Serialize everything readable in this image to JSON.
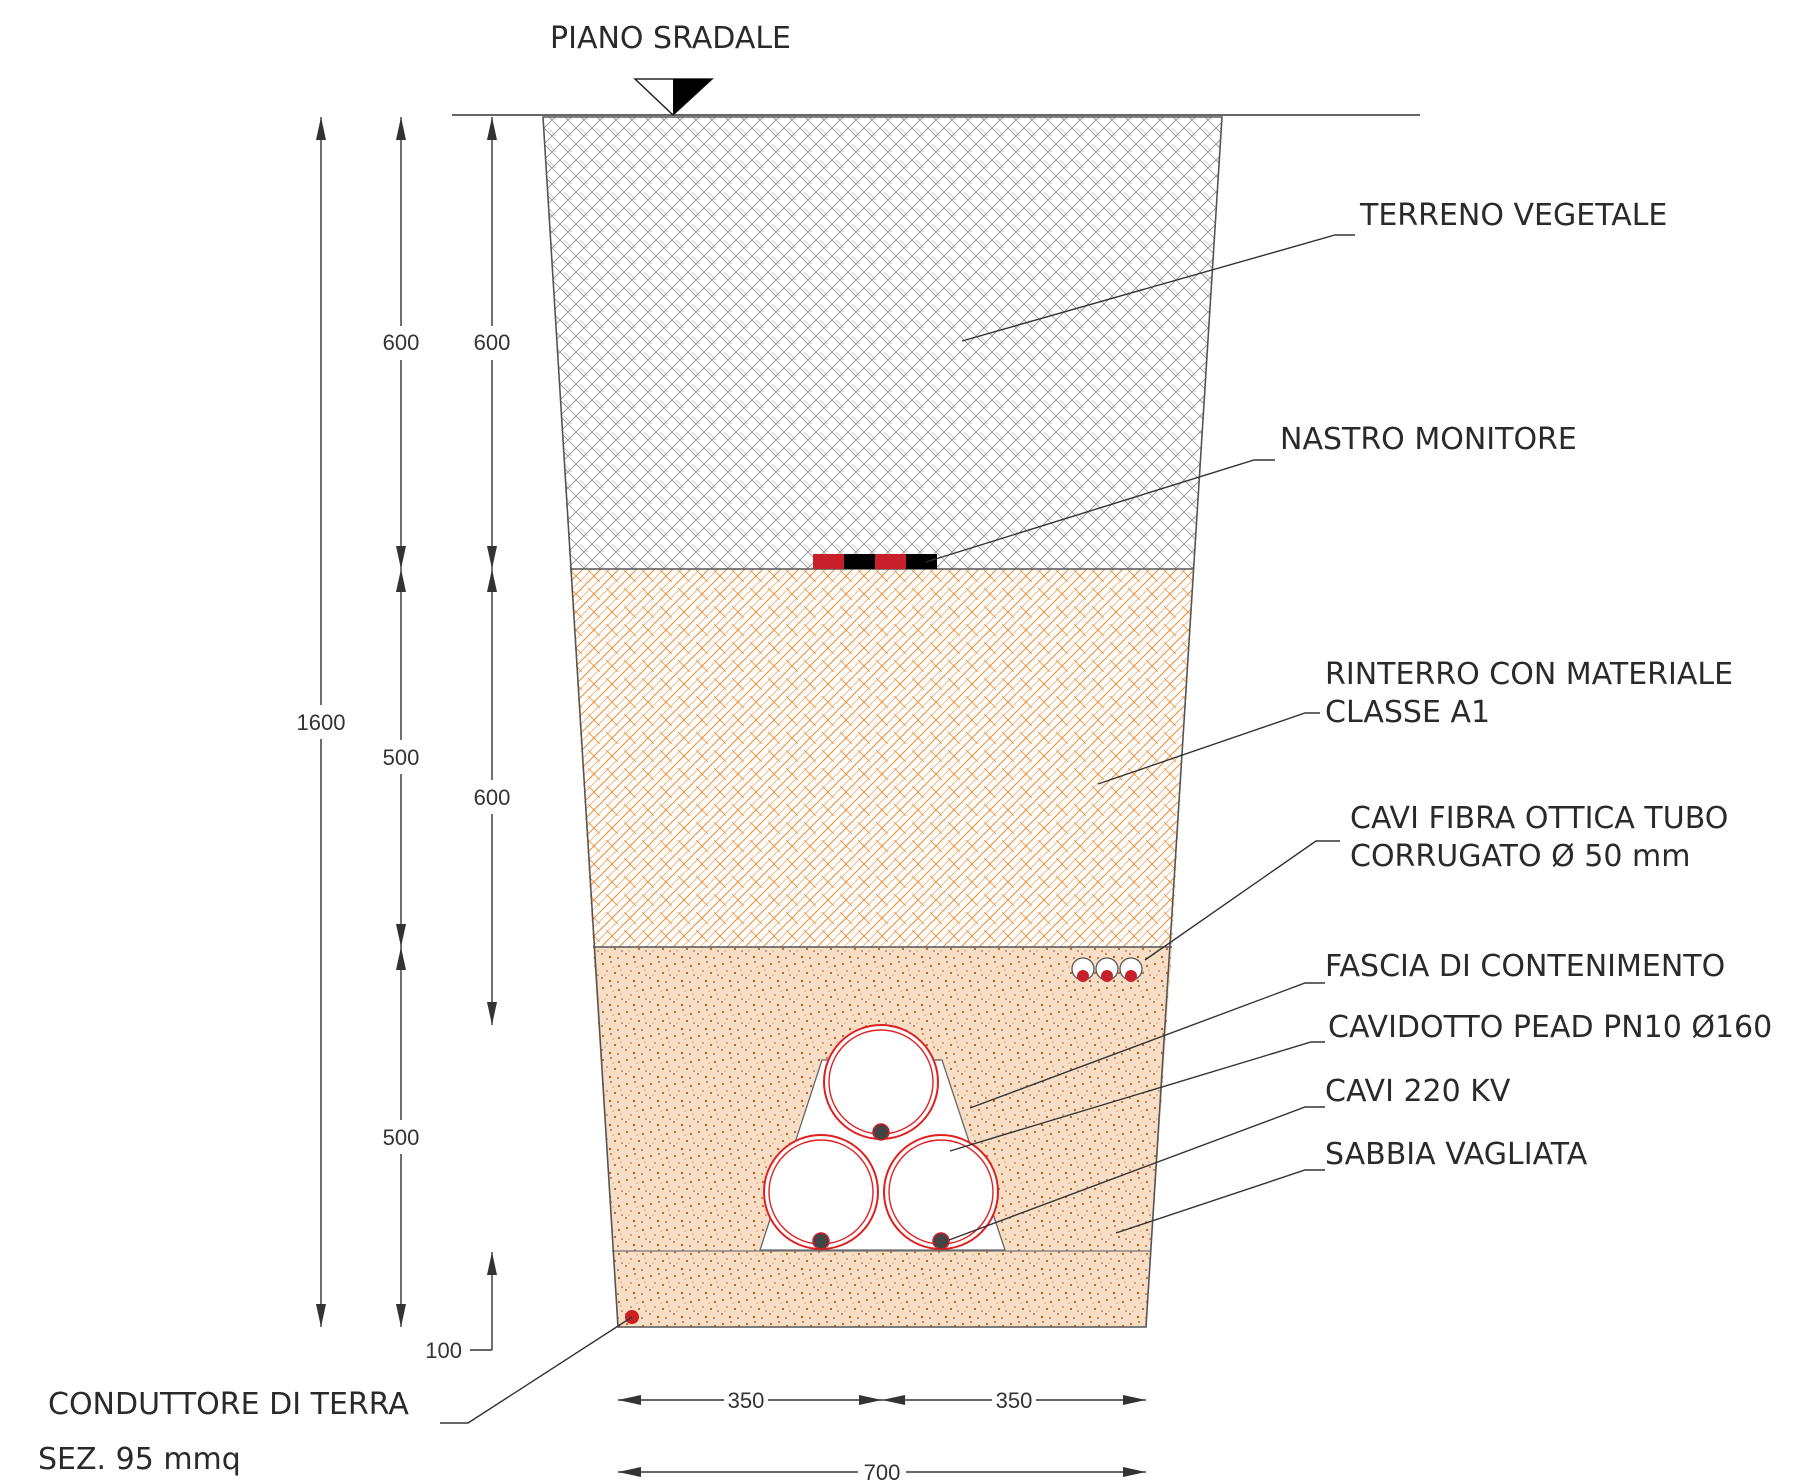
{
  "header": {
    "label": "PIANO SRADALE"
  },
  "layers": [
    {
      "name": "TERRENO VEGETALE",
      "color": "#8a8a8a"
    },
    {
      "name": "RINTERRO CON MATERIALE CLASSE A1",
      "color": "#ee8a2a"
    },
    {
      "name": "SABBIA VAGLIATA",
      "color": "#cc6a22"
    }
  ],
  "labels": {
    "terreno": "TERRENO VEGETALE",
    "nastro": "NASTRO MONITORE",
    "rinterro_1": "RINTERRO CON MATERIALE",
    "rinterro_2": "CLASSE A1",
    "fibra_1": "CAVI FIBRA OTTICA TUBO",
    "fibra_2": "CORRUGATO Ø 50 mm",
    "fascia": "FASCIA DI CONTENIMENTO",
    "cavidotto": "CAVIDOTTO PEAD PN10 Ø160",
    "cavi": "CAVI 220 KV",
    "sabbia": "SABBIA VAGLIATA",
    "conduttore_1": "CONDUTTORE DI TERRA",
    "conduttore_2": "SEZ. 95 mmq"
  },
  "dimensions": {
    "total": "1600",
    "col2_a": "600",
    "col2_b": "500",
    "col2_c": "500",
    "col3_a": "600",
    "col3_b": "600",
    "col3_c": "100",
    "half_left": "350",
    "half_right": "350",
    "width": "700"
  },
  "colors": {
    "tape_red": "#c8202a",
    "tape_black": "#000000",
    "pipe_red": "#e02020",
    "cable_dark": "#444444",
    "earth_red": "#cc1f1f"
  }
}
